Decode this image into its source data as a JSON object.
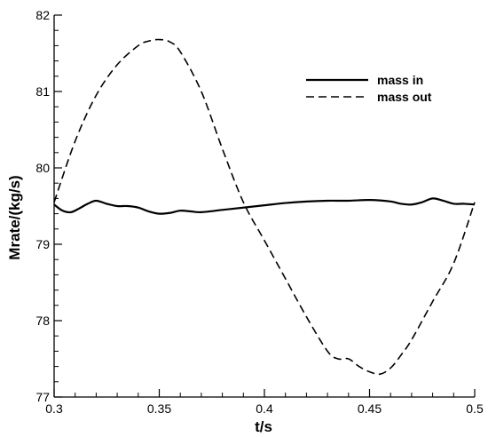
{
  "chart_data": {
    "type": "line",
    "title": "",
    "xlabel": "t/s",
    "ylabel": "Mrate/(kg/s)",
    "xlim": [
      0.3,
      0.5
    ],
    "ylim": [
      77,
      82
    ],
    "x_ticks": [
      "0.3",
      "0.35",
      "0.4",
      "0.45",
      "0.5"
    ],
    "y_ticks": [
      "77",
      "78",
      "79",
      "80",
      "81",
      "82"
    ],
    "grid": false,
    "legend_position": "top-right",
    "series": [
      {
        "name": "mass in",
        "style": "solid",
        "color": "#000000",
        "x": [
          0.3,
          0.304,
          0.308,
          0.312,
          0.316,
          0.32,
          0.325,
          0.33,
          0.335,
          0.34,
          0.345,
          0.35,
          0.355,
          0.36,
          0.365,
          0.37,
          0.38,
          0.39,
          0.4,
          0.41,
          0.42,
          0.43,
          0.44,
          0.45,
          0.46,
          0.465,
          0.47,
          0.475,
          0.48,
          0.485,
          0.49,
          0.495,
          0.5
        ],
        "y": [
          79.52,
          79.44,
          79.42,
          79.47,
          79.53,
          79.57,
          79.53,
          79.5,
          79.5,
          79.48,
          79.43,
          79.4,
          79.41,
          79.44,
          79.43,
          79.42,
          79.45,
          79.48,
          79.51,
          79.54,
          79.56,
          79.57,
          79.57,
          79.58,
          79.56,
          79.53,
          79.52,
          79.55,
          79.6,
          79.57,
          79.53,
          79.53,
          79.52
        ]
      },
      {
        "name": "mass out",
        "style": "dashed",
        "color": "#000000",
        "x": [
          0.3,
          0.31,
          0.32,
          0.33,
          0.34,
          0.345,
          0.35,
          0.355,
          0.36,
          0.37,
          0.38,
          0.39,
          0.4,
          0.41,
          0.42,
          0.43,
          0.435,
          0.44,
          0.445,
          0.45,
          0.455,
          0.46,
          0.465,
          0.47,
          0.48,
          0.49,
          0.5
        ],
        "y": [
          79.55,
          80.35,
          80.95,
          81.35,
          81.6,
          81.66,
          81.68,
          81.65,
          81.52,
          81.0,
          80.25,
          79.55,
          79.05,
          78.55,
          78.05,
          77.6,
          77.5,
          77.5,
          77.4,
          77.33,
          77.3,
          77.38,
          77.55,
          77.75,
          78.25,
          78.75,
          79.55
        ]
      }
    ]
  }
}
